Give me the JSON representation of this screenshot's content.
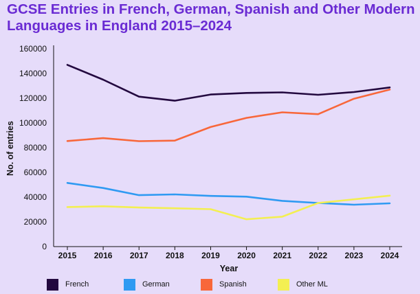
{
  "chart_data": {
    "type": "line",
    "title": "GCSE Entries in French, German, Spanish and Other Modern Languages in England 2015–2024",
    "xlabel": "Year",
    "ylabel": "No. of entries",
    "ylim": [
      0,
      160000
    ],
    "y_ticks": [
      0,
      20000,
      40000,
      60000,
      80000,
      100000,
      120000,
      140000,
      160000
    ],
    "grid": false,
    "legend_position": "bottom",
    "categories": [
      "2015",
      "2016",
      "2017",
      "2018",
      "2019",
      "2020",
      "2021",
      "2022",
      "2023",
      "2024"
    ],
    "series": [
      {
        "name": "French",
        "color": "#23093f",
        "values": [
          147000,
          135000,
          121300,
          118000,
          123000,
          124300,
          124700,
          122800,
          125000,
          128700
        ]
      },
      {
        "name": "German",
        "color": "#2f9af2",
        "values": [
          51500,
          47400,
          41600,
          42200,
          41000,
          40400,
          37000,
          35300,
          33900,
          35000
        ]
      },
      {
        "name": "Spanish",
        "color": "#f8673a",
        "values": [
          85400,
          87700,
          85300,
          85700,
          96700,
          104100,
          108600,
          107100,
          119600,
          127000
        ]
      },
      {
        "name": "Other ML",
        "color": "#f3ef52",
        "values": [
          32000,
          32600,
          31600,
          31000,
          30300,
          22100,
          24200,
          35300,
          38200,
          41200
        ]
      }
    ]
  }
}
